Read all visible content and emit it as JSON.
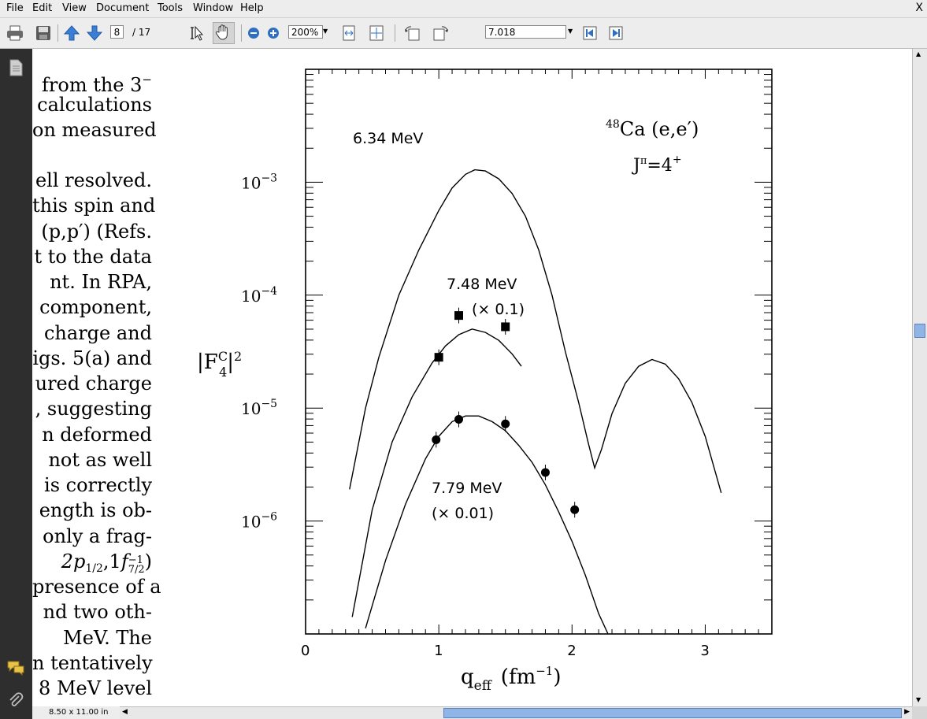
{
  "menubar": {
    "items": [
      "File",
      "Edit",
      "View",
      "Document",
      "Tools",
      "Window",
      "Help"
    ],
    "close": "X"
  },
  "toolbar": {
    "page_current": "8",
    "page_total": "/ 17",
    "zoom": "200%",
    "search_value": "7.018"
  },
  "status": {
    "page_size": "8.50 x 11.00 in"
  },
  "document": {
    "text_lines": [
      "from the 3−",
      "calculations",
      "on measured",
      "",
      "ell resolved.",
      "this spin and",
      "(p,p′) (Refs.",
      "t to the data",
      "nt. In RPA,",
      "component,",
      "charge and",
      "igs. 5(a) and",
      "ured charge",
      ", suggesting",
      "n deformed",
      "not as well",
      "is correctly",
      "ength is ob-",
      "only a frag-",
      "2p1/2,1f⁻¹7/2)",
      "presence of a",
      "nd two oth-",
      "MeV. The",
      "n tentatively",
      "8 MeV level"
    ]
  },
  "chart_data": {
    "type": "scatter",
    "title": "48Ca (e,e′)",
    "subtitle": "Jπ=4+",
    "xlabel": "qeff (fm−1)",
    "ylabel": "|F4C|2",
    "xlim": [
      0,
      3.5
    ],
    "ylim_log10": [
      -7.0,
      -2.0
    ],
    "x_ticks": [
      "0",
      "1",
      "2",
      "3"
    ],
    "y_ticks": [
      "10−3",
      "10−4",
      "10−5",
      "10−6"
    ],
    "y_tick_values": [
      -3,
      -4,
      -5,
      -6
    ],
    "series": [
      {
        "name": "6.34 MeV",
        "curve_q": [
          0.33,
          0.45,
          0.55,
          0.7,
          0.85,
          1.0,
          1.1,
          1.2,
          1.27,
          1.35,
          1.45,
          1.55,
          1.65,
          1.75,
          1.85,
          1.95,
          2.05,
          2.12,
          2.17,
          2.22,
          2.3,
          2.4,
          2.5,
          2.6,
          2.7,
          2.8,
          2.9,
          3.0,
          3.12
        ],
        "curve_log": [
          -5.72,
          -5.0,
          -4.55,
          -4.0,
          -3.6,
          -3.25,
          -3.05,
          -2.93,
          -2.89,
          -2.9,
          -2.97,
          -3.1,
          -3.3,
          -3.6,
          -4.0,
          -4.5,
          -4.95,
          -5.3,
          -5.53,
          -5.37,
          -5.05,
          -4.78,
          -4.63,
          -4.57,
          -4.61,
          -4.74,
          -4.95,
          -5.25,
          -5.75
        ],
        "points": []
      },
      {
        "name": "7.48 MeV (× 0.1)",
        "curve_q": [
          0.35,
          0.5,
          0.65,
          0.8,
          0.95,
          1.05,
          1.15,
          1.25,
          1.35,
          1.45,
          1.55,
          1.62
        ],
        "curve_log": [
          -6.85,
          -5.9,
          -5.3,
          -4.9,
          -4.6,
          -4.45,
          -4.35,
          -4.3,
          -4.33,
          -4.4,
          -4.52,
          -4.63
        ],
        "points": [
          [
            1.0,
            -4.55
          ],
          [
            1.15,
            -4.18
          ],
          [
            1.5,
            -4.28
          ]
        ]
      },
      {
        "name": "7.79 MeV (× 0.01)",
        "curve_q": [
          0.45,
          0.6,
          0.75,
          0.9,
          1.0,
          1.1,
          1.2,
          1.3,
          1.4,
          1.5,
          1.6,
          1.7,
          1.8,
          1.9,
          2.0,
          2.1,
          2.2,
          2.27
        ],
        "curve_log": [
          -6.95,
          -6.35,
          -5.85,
          -5.45,
          -5.25,
          -5.12,
          -5.07,
          -5.07,
          -5.12,
          -5.2,
          -5.33,
          -5.48,
          -5.68,
          -5.92,
          -6.18,
          -6.48,
          -6.82,
          -7.0
        ],
        "points": [
          [
            0.98,
            -5.28
          ],
          [
            1.15,
            -5.1
          ],
          [
            1.5,
            -5.14
          ],
          [
            1.8,
            -5.57
          ],
          [
            2.02,
            -5.9
          ]
        ]
      }
    ],
    "labels": {
      "s1": "6.34 MeV",
      "s2a": "7.48 MeV",
      "s2b": "(× 0.1)",
      "s3a": "7.79 MeV",
      "s3b": "(× 0.01)"
    }
  }
}
